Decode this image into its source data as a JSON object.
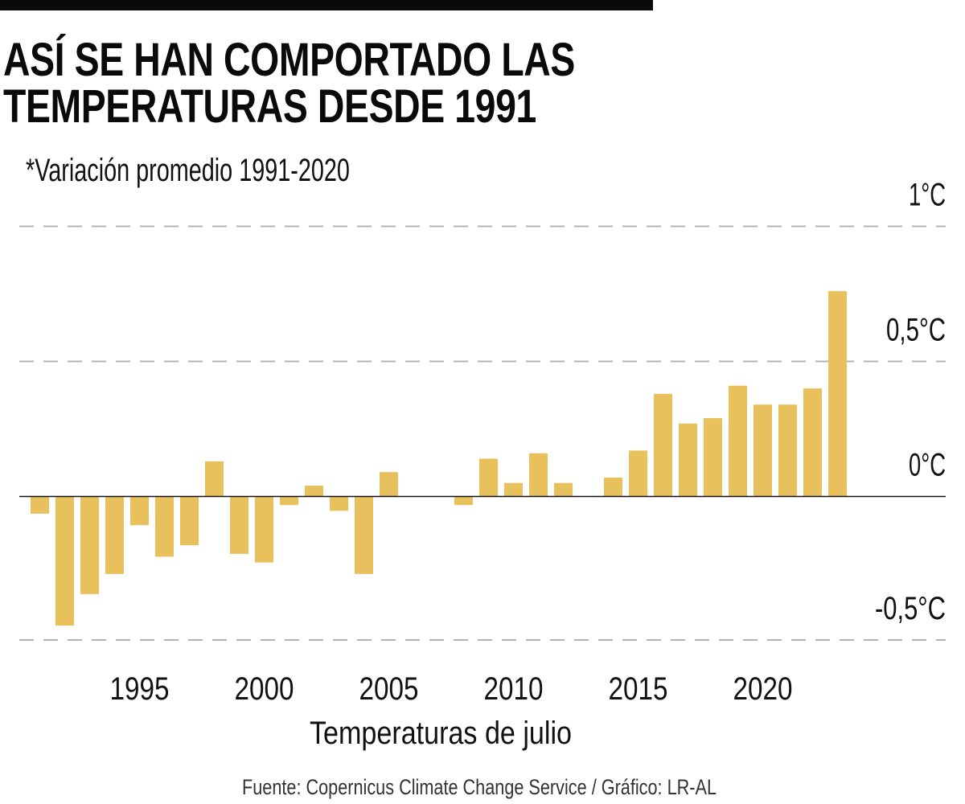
{
  "header": {
    "title_line1": "ASÍ SE HAN COMPORTADO LAS",
    "title_line2": "TEMPERATURAS DESDE 1991",
    "subtitle": "*Variación promedio 1991-2020"
  },
  "footer": {
    "source": "Fuente: Copernicus Climate Change Service / Gráfico: LR-AL"
  },
  "colors": {
    "bar": "#e8c05c",
    "rule": "#0a0a0a",
    "grid": "#b3b3b3"
  },
  "chart_data": {
    "type": "bar",
    "title": "ASÍ SE HAN COMPORTADO LAS TEMPERATURAS DESDE 1991",
    "subtitle": "*Variación promedio 1991-2020",
    "xlabel": "Temperaturas de julio",
    "ylabel": "",
    "ylim": [
      -0.5,
      1.0
    ],
    "grid": true,
    "y_axis_position": "right",
    "y_ticks": [
      {
        "value": 1.0,
        "label": "1°C"
      },
      {
        "value": 0.5,
        "label": "0,5°C"
      },
      {
        "value": 0.0,
        "label": "0°C"
      },
      {
        "value": -0.5,
        "label": "-0,5°C"
      }
    ],
    "x_ticks": [
      {
        "value": 1995,
        "label": "1995"
      },
      {
        "value": 2000,
        "label": "2000"
      },
      {
        "value": 2005,
        "label": "2005"
      },
      {
        "value": 2010,
        "label": "2010"
      },
      {
        "value": 2015,
        "label": "2015"
      },
      {
        "value": 2020,
        "label": "2020"
      }
    ],
    "categories": [
      1991,
      1992,
      1993,
      1994,
      1995,
      1996,
      1997,
      1998,
      1999,
      2000,
      2001,
      2002,
      2003,
      2004,
      2005,
      2006,
      2007,
      2008,
      2009,
      2010,
      2011,
      2012,
      2013,
      2014,
      2015,
      2016,
      2017,
      2018,
      2019,
      2020,
      2021,
      2022,
      2023
    ],
    "values": [
      -0.06,
      -0.45,
      -0.34,
      -0.27,
      -0.1,
      -0.21,
      -0.17,
      0.13,
      -0.2,
      -0.23,
      -0.03,
      0.04,
      -0.05,
      -0.27,
      0.09,
      0.0,
      0.0,
      -0.03,
      0.14,
      0.05,
      0.16,
      0.05,
      0.0,
      0.07,
      0.17,
      0.38,
      0.27,
      0.29,
      0.41,
      0.34,
      0.34,
      0.4,
      0.76
    ],
    "units": "°C"
  }
}
